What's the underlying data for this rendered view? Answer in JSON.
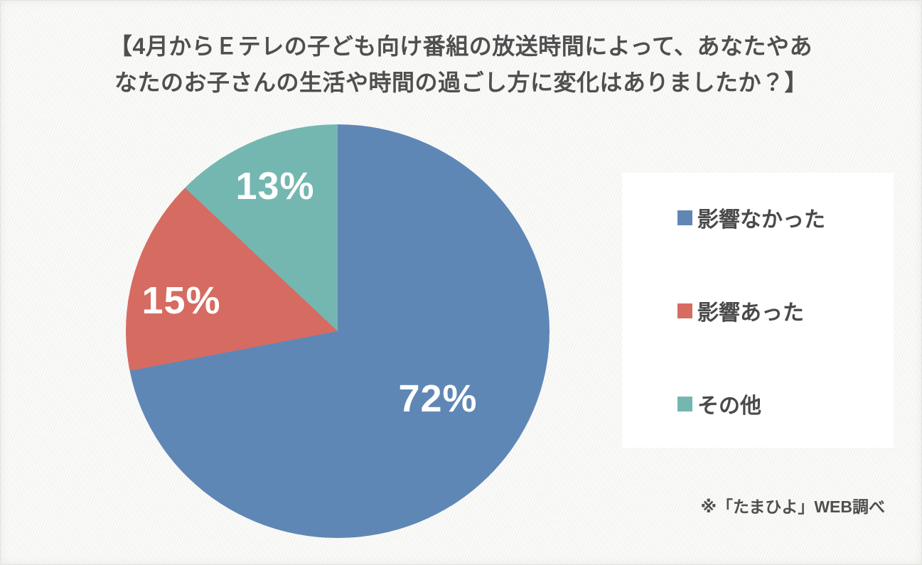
{
  "title": {
    "line1": "【4月からＥテレの子ども向け番組の放送時間によって、あなたやあ",
    "line2": "なたのお子さんの生活や時間の過ごし方に変化はありましたか？】"
  },
  "chart_data": {
    "type": "pie",
    "title": "【4月からＥテレの子ども向け番組の放送時間によって、あなたやあなたのお子さんの生活や時間の過ごし方に変化はありましたか？】",
    "categories": [
      "影響なかった",
      "影響あった",
      "その他"
    ],
    "values": [
      72,
      15,
      13
    ],
    "unit": "%",
    "colors": [
      "#5f87b6",
      "#d66b62",
      "#74b7b1"
    ],
    "start_angle_deg": 0,
    "direction": "clockwise",
    "slice_labels": [
      "72%",
      "15%",
      "13%"
    ],
    "legend_position": "right",
    "label_color": "#ffffff"
  },
  "legend": {
    "items": [
      {
        "label": "影響なかった",
        "color": "#5f87b6"
      },
      {
        "label": "影響あった",
        "color": "#d66b62"
      },
      {
        "label": "その他",
        "color": "#74b7b1"
      }
    ]
  },
  "footer": {
    "source_note": "※「たまひよ」WEB調べ"
  }
}
